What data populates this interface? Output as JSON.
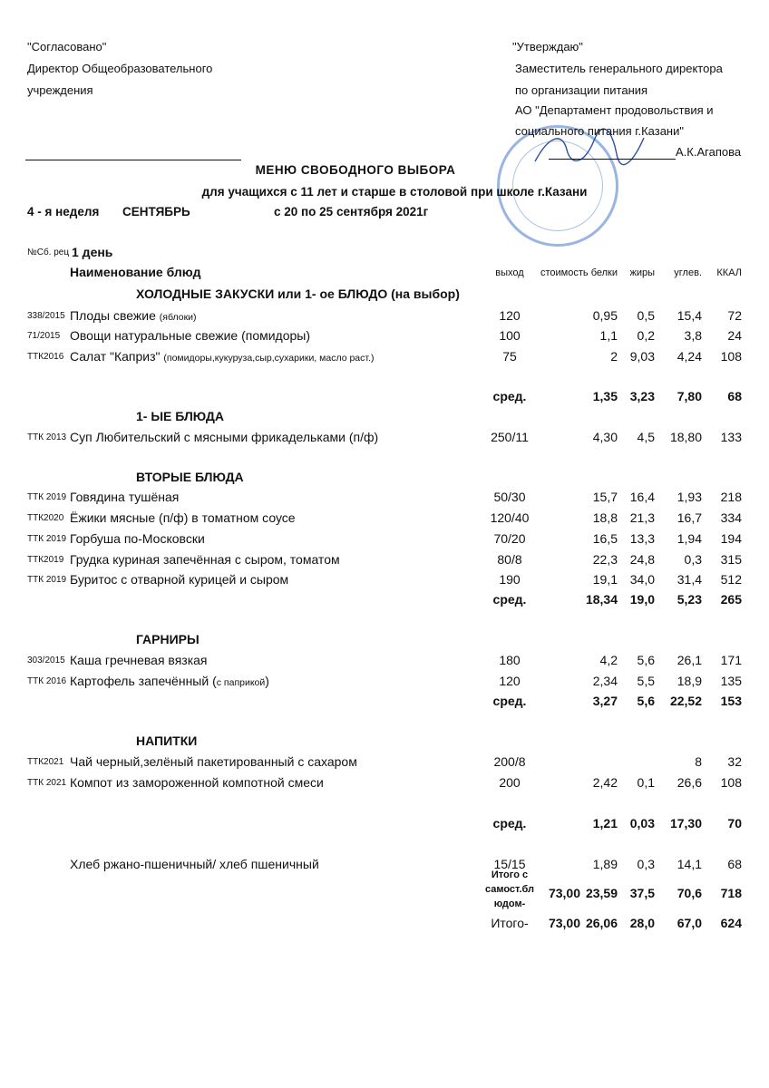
{
  "approval_left": {
    "title": "\"Согласовано\"",
    "line1": "Директор Общеобразовательного",
    "line2": "учреждения"
  },
  "approval_right": {
    "title": "\"Утверждаю\"",
    "line1": "Заместитель генерального директора",
    "line2": "по организации питания",
    "line3": "АО \"Департамент продовольствия и",
    "line4": "социального питания г.Казани\"",
    "signer": "А.К.Агапова"
  },
  "title": "МЕНЮ  СВОБОДНОГО  ВЫБОРА",
  "subtitle": "для  учащихся с 11 лет и старше  в  столовой при школе г.Казани",
  "week": "4 - я неделя",
  "month": "СЕНТЯБРЬ",
  "period": "с  20  по 25  сентября 2021г",
  "day_prefix": "№Сб. рец",
  "day": "1 день",
  "stamp_color": "#4678c8",
  "rows": [
    {
      "kind": "colhead",
      "name": "Наименование  блюд",
      "out": "выход",
      "cost": "стоимость",
      "b": "белки",
      "f": "жиры",
      "c": "углев.",
      "k": "ККАЛ"
    },
    {
      "kind": "section",
      "name": "ХОЛОДНЫЕ  ЗАКУСКИ  или 1- ое БЛЮДО (на выбор)"
    },
    {
      "kind": "item",
      "code": "338/2015",
      "name": "Плоды свежие ",
      "note": " (яблоки)",
      "out": "120",
      "b": "0,95",
      "f": "0,5",
      "c": "15,4",
      "k": "72"
    },
    {
      "kind": "item",
      "code": "71/2015",
      "name": " Овощи натуральные свежие (помидоры)",
      "out": "100",
      "b": "1,1",
      "f": "0,2",
      "c": "3,8",
      "k": "24"
    },
    {
      "kind": "item",
      "code": "ТТК2016",
      "name": " Салат \"Каприз\" ",
      "note": "(помидоры,кукуруза,сыр,сухарики, масло раст.)",
      "out": "75",
      "b": "2",
      "f": "9,03",
      "c": "4,24",
      "k": "108"
    },
    {
      "kind": "avg",
      "out": "сред.",
      "b": "1,35",
      "f": "3,23",
      "c": "7,80",
      "k": "68"
    },
    {
      "kind": "section",
      "name": "1- ЫЕ БЛЮДА"
    },
    {
      "kind": "item",
      "code": "ТТК 2013",
      "name": "Суп Любительский с мясными фрикадельками (п/ф)",
      "out": "250/11",
      "b": "4,30",
      "f": "4,5",
      "c": "18,80",
      "k": "133"
    },
    {
      "kind": "section",
      "name": "ВТОРЫЕ  БЛЮДА"
    },
    {
      "kind": "item",
      "code": "ТТК 2019",
      "name": "Говядина тушёная",
      "out": "50/30",
      "b": "15,7",
      "f": "16,4",
      "c": "1,93",
      "k": "218"
    },
    {
      "kind": "item",
      "code": "ТТК2020",
      "name": " Ёжики мясные (п/ф) в томатном соусе",
      "out": "120/40",
      "b": "18,8",
      "f": "21,3",
      "c": "16,7",
      "k": "334"
    },
    {
      "kind": "item",
      "code": "ТТК 2019",
      "name": "Горбуша по-Московски",
      "out": "70/20",
      "b": "16,5",
      "f": "13,3",
      "c": "1,94",
      "k": "194"
    },
    {
      "kind": "item",
      "code": "ТТК2019",
      "name": " Грудка куриная запечённая  с сыром, томатом",
      "out": "80/8",
      "b": "22,3",
      "f": "24,8",
      "c": "0,3",
      "k": "315"
    },
    {
      "kind": "item",
      "code": "ТТК 2019",
      "name": "Буритос с отварной курицей  и сыром",
      "out": "190",
      "b": "19,1",
      "f": "34,0",
      "c": "31,4",
      "k": "512"
    },
    {
      "kind": "avg",
      "out": "сред.",
      "b": "18,34",
      "f": "19,0",
      "c": "5,23",
      "k": "265"
    },
    {
      "kind": "section",
      "name": "ГАРНИРЫ"
    },
    {
      "kind": "item",
      "code": "303/2015",
      "name": "  Каша гречневая  вязкая",
      "out": "180",
      "b": "4,2",
      "f": "5,6",
      "c": "26,1",
      "k": "171"
    },
    {
      "kind": "item",
      "code": "ТТК 2016",
      "name": "Картофель запечённый (",
      "note": "с паприкой",
      "name2": ")",
      "out": "120",
      "b": "2,34",
      "f": "5,5",
      "c": "18,9",
      "k": "135"
    },
    {
      "kind": "avg",
      "out": "сред.",
      "b": "3,27",
      "f": "5,6",
      "c": "22,52",
      "k": "153"
    },
    {
      "kind": "section",
      "name": "НАПИТКИ"
    },
    {
      "kind": "item",
      "code": "ТТК2021",
      "name": " Чай черный,зелёный  пакетированный с сахаром",
      "out": "200/8",
      "c": "8",
      "k": "32"
    },
    {
      "kind": "item",
      "code": "ТТК 2021",
      "name": "Компот из замороженной компотной смеси",
      "out": "200",
      "b": "2,42",
      "f": "0,1",
      "c": "26,6",
      "k": "108"
    },
    {
      "kind": "avg",
      "out": "сред.",
      "b": "1,21",
      "f": "0,03",
      "c": "17,30",
      "k": "70"
    },
    {
      "kind": "item",
      "name": "Хлеб ржано-пшеничный/ хлеб пшеничный",
      "out": "15/15",
      "b": "1,89",
      "f": "0,3",
      "c": "14,1",
      "k": "68"
    },
    {
      "kind": "total1",
      "out": "Итого с самост.бл юдом-",
      "cost": "73,00",
      "b": "23,59",
      "f": "37,5",
      "c": "70,6",
      "k": "718"
    },
    {
      "kind": "total2",
      "out": "Итого-",
      "cost": "73,00",
      "b": "26,06",
      "f": "28,0",
      "c": "67,0",
      "k": "624"
    }
  ]
}
